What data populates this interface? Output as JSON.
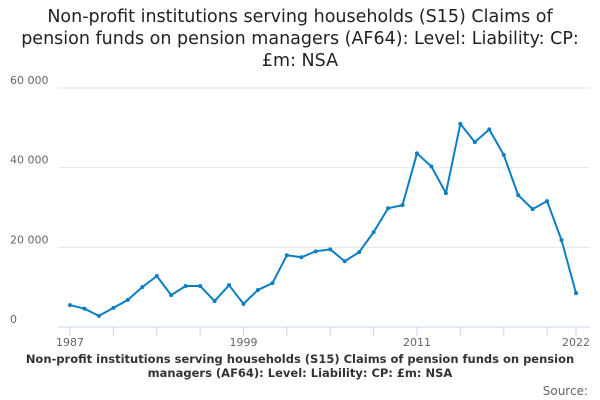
{
  "chart_data": {
    "type": "line",
    "title": "Non-profit institutions serving households (S15) Claims of pension funds on pension managers (AF64): Level: Liability: CP: £m: NSA",
    "series_name": "Non-profit institutions serving households (S15) Claims of pension funds on pension managers (AF64): Level: Liability: CP: £m: NSA",
    "x": [
      1987,
      1988,
      1989,
      1990,
      1991,
      1992,
      1993,
      1994,
      1995,
      1996,
      1997,
      1998,
      1999,
      2000,
      2001,
      2002,
      2003,
      2004,
      2005,
      2006,
      2007,
      2008,
      2009,
      2010,
      2011,
      2012,
      2013,
      2014,
      2015,
      2016,
      2017,
      2018,
      2019,
      2020,
      2021,
      2022
    ],
    "values": [
      5500,
      4600,
      2800,
      4800,
      6800,
      10000,
      12800,
      8000,
      10300,
      10300,
      6500,
      10500,
      5800,
      9300,
      11000,
      18000,
      17500,
      19000,
      19500,
      16500,
      18800,
      23800,
      29800,
      30600,
      43600,
      40300,
      33600,
      51000,
      46400,
      49600,
      43200,
      33100,
      29600,
      31600,
      21800,
      8500
    ],
    "xlabel": "",
    "ylabel": "",
    "ylim": [
      0,
      60000
    ],
    "xlim": [
      1987,
      2022
    ],
    "y_ticks": [
      0,
      20000,
      40000,
      60000
    ],
    "y_tick_labels": [
      "0",
      "20 000",
      "40 000",
      "60 000"
    ],
    "x_tick_labels": [
      "1987",
      "1999",
      "2011",
      "2022"
    ],
    "grid": true,
    "color": "#0b7fc4"
  },
  "source_label": "Source:"
}
